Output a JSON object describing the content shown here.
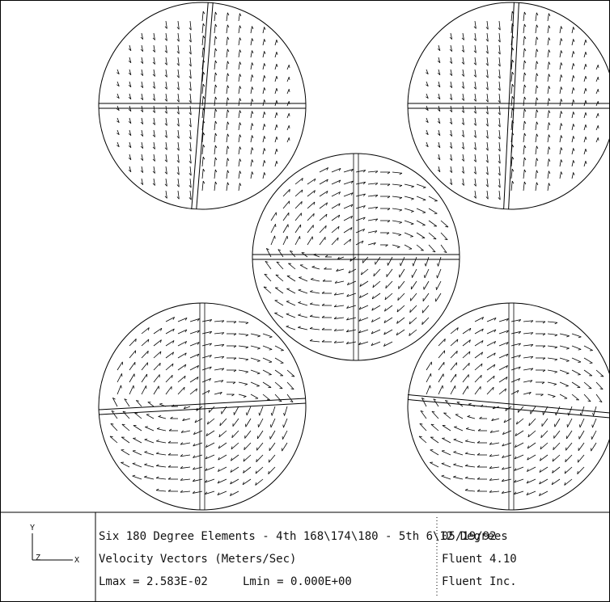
{
  "legend": {
    "axes": {
      "y": "Y",
      "z": "Z",
      "x": "X"
    },
    "title": "Six 180 Degree Elements - 4th 168\\174\\180 - 5th 6\\12 Degrees",
    "subtitle": "Velocity Vectors (Meters/Sec)",
    "lmax": "Lmax = 2.583E-02",
    "lmin": "Lmin = 0.000E+00",
    "date": "05/19/92",
    "software": "Fluent 4.10",
    "company": "Fluent Inc."
  }
}
